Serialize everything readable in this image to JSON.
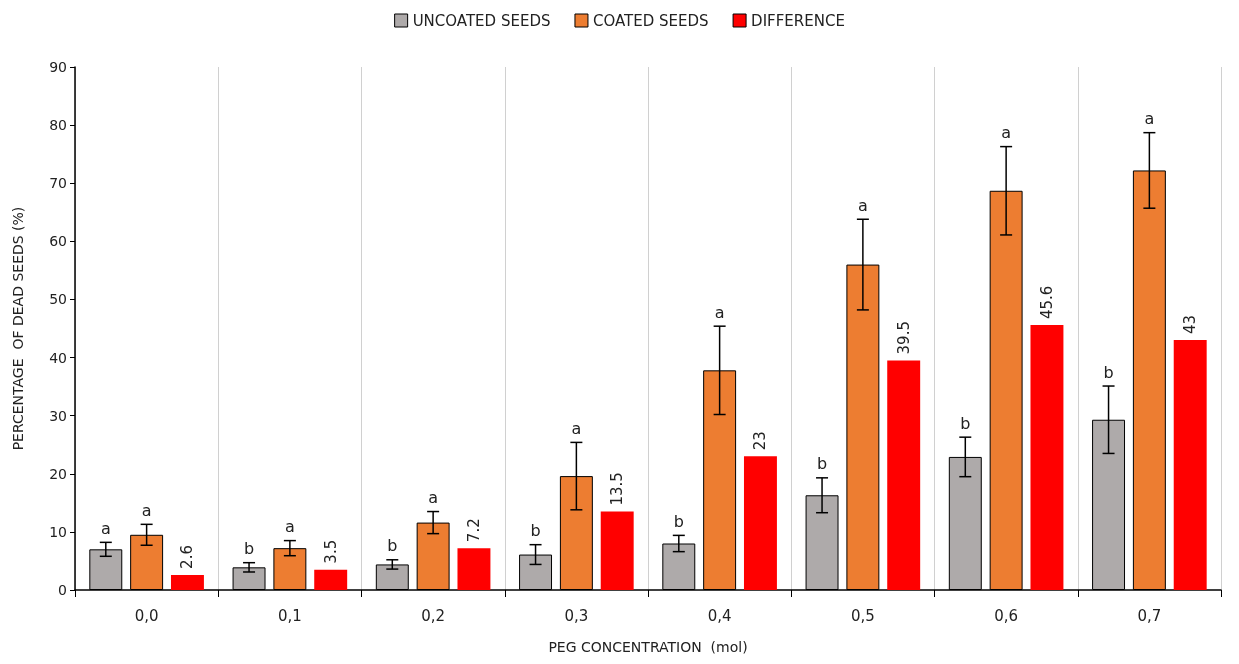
{
  "chart_data": {
    "type": "bar",
    "xlabel": "PEG CONCENTRATION  (mol)",
    "ylabel": "PERCENTAGE  OF DEAD SEEDS (%)",
    "categories": [
      "0,0",
      "0,1",
      "0,2",
      "0,3",
      "0,4",
      "0,5",
      "0,6",
      "0,7"
    ],
    "series": [
      {
        "name": "UNCOATED SEEDS",
        "color": "#aeaaaa",
        "values": [
          7.0,
          3.9,
          4.4,
          6.1,
          8.0,
          16.3,
          22.9,
          29.3
        ],
        "errors": [
          1.2,
          0.8,
          0.8,
          1.7,
          1.4,
          3.0,
          3.4,
          5.8
        ],
        "value_labels": [
          "a",
          "b",
          "b",
          "b",
          "b",
          "b",
          "b",
          "b"
        ]
      },
      {
        "name": "COATED SEEDS",
        "color": "#ed7d31",
        "values": [
          9.5,
          7.2,
          11.6,
          19.6,
          37.8,
          56.0,
          68.7,
          72.2
        ],
        "errors": [
          1.8,
          1.3,
          1.9,
          5.8,
          7.6,
          7.8,
          7.6,
          6.5
        ],
        "value_labels": [
          "a",
          "a",
          "a",
          "a",
          "a",
          "a",
          "a",
          "a"
        ]
      },
      {
        "name": "DIFFERENCE",
        "color": "#ff0000",
        "values": [
          2.6,
          3.5,
          7.2,
          13.5,
          23,
          39.5,
          45.6,
          43
        ],
        "value_labels": [
          "2.6",
          "3.5",
          "7.2",
          "13.5",
          "23",
          "39.5",
          "45.6",
          "43"
        ]
      }
    ],
    "ylim": [
      0,
      90
    ],
    "yticks": [
      0,
      10,
      20,
      30,
      40,
      50,
      60,
      70,
      80,
      90
    ],
    "grid": "x",
    "legend": "top"
  }
}
